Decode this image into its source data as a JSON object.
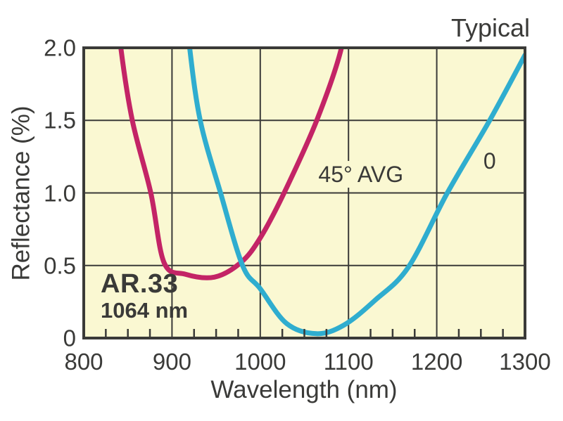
{
  "colors": {
    "background": "#ffffff",
    "plot_background": "#faf8d2",
    "axis_and_text": "#3a3a38",
    "series_45_avg": "#c32466",
    "series_0_deg": "#2fadcf"
  },
  "chart_data": {
    "type": "line",
    "title": "Typical",
    "xlabel": "Wavelength (nm)",
    "ylabel": "Reflectance (%)",
    "xlim": [
      800,
      1300
    ],
    "ylim": [
      0,
      2
    ],
    "grid": true,
    "x_major_ticks": [
      800,
      900,
      1000,
      1100,
      1200,
      1300
    ],
    "x_tick_labels": [
      "800",
      "900",
      "1000",
      "1100",
      "1200",
      "1300"
    ],
    "x_minor_tick_step": 25,
    "y_ticks": [
      0,
      0.5,
      1,
      1.5,
      2
    ],
    "y_tick_labels": [
      "0",
      "0.5",
      "1.0",
      "1.5",
      "2.0"
    ],
    "legend_position": "inline-labels",
    "annotations": [
      {
        "text": "AR.33"
      },
      {
        "text": "1064 nm"
      }
    ],
    "series": [
      {
        "name": "45° AVG",
        "color": "#c32466",
        "label_at": {
          "x": 1114,
          "y": 1.13
        },
        "points": [
          [
            838,
            2.3
          ],
          [
            842,
            2.0
          ],
          [
            855,
            1.5
          ],
          [
            876,
            1.0
          ],
          [
            891,
            0.52
          ],
          [
            915,
            0.44
          ],
          [
            948,
            0.42
          ],
          [
            978,
            0.52
          ],
          [
            1000,
            0.69
          ],
          [
            1027,
            1.0
          ],
          [
            1064,
            1.5
          ],
          [
            1092,
            2.0
          ],
          [
            1096,
            2.3
          ]
        ]
      },
      {
        "name": "0",
        "color": "#2fadcf",
        "label_at": {
          "x": 1260,
          "y": 1.22
        },
        "points": [
          [
            916,
            2.3
          ],
          [
            920,
            2.0
          ],
          [
            932,
            1.5
          ],
          [
            955,
            1.0
          ],
          [
            980,
            0.5
          ],
          [
            1000,
            0.34
          ],
          [
            1030,
            0.1
          ],
          [
            1064,
            0.03
          ],
          [
            1095,
            0.09
          ],
          [
            1130,
            0.26
          ],
          [
            1168,
            0.49
          ],
          [
            1212,
            1.0
          ],
          [
            1260,
            1.5
          ],
          [
            1300,
            1.95
          ]
        ]
      }
    ]
  }
}
